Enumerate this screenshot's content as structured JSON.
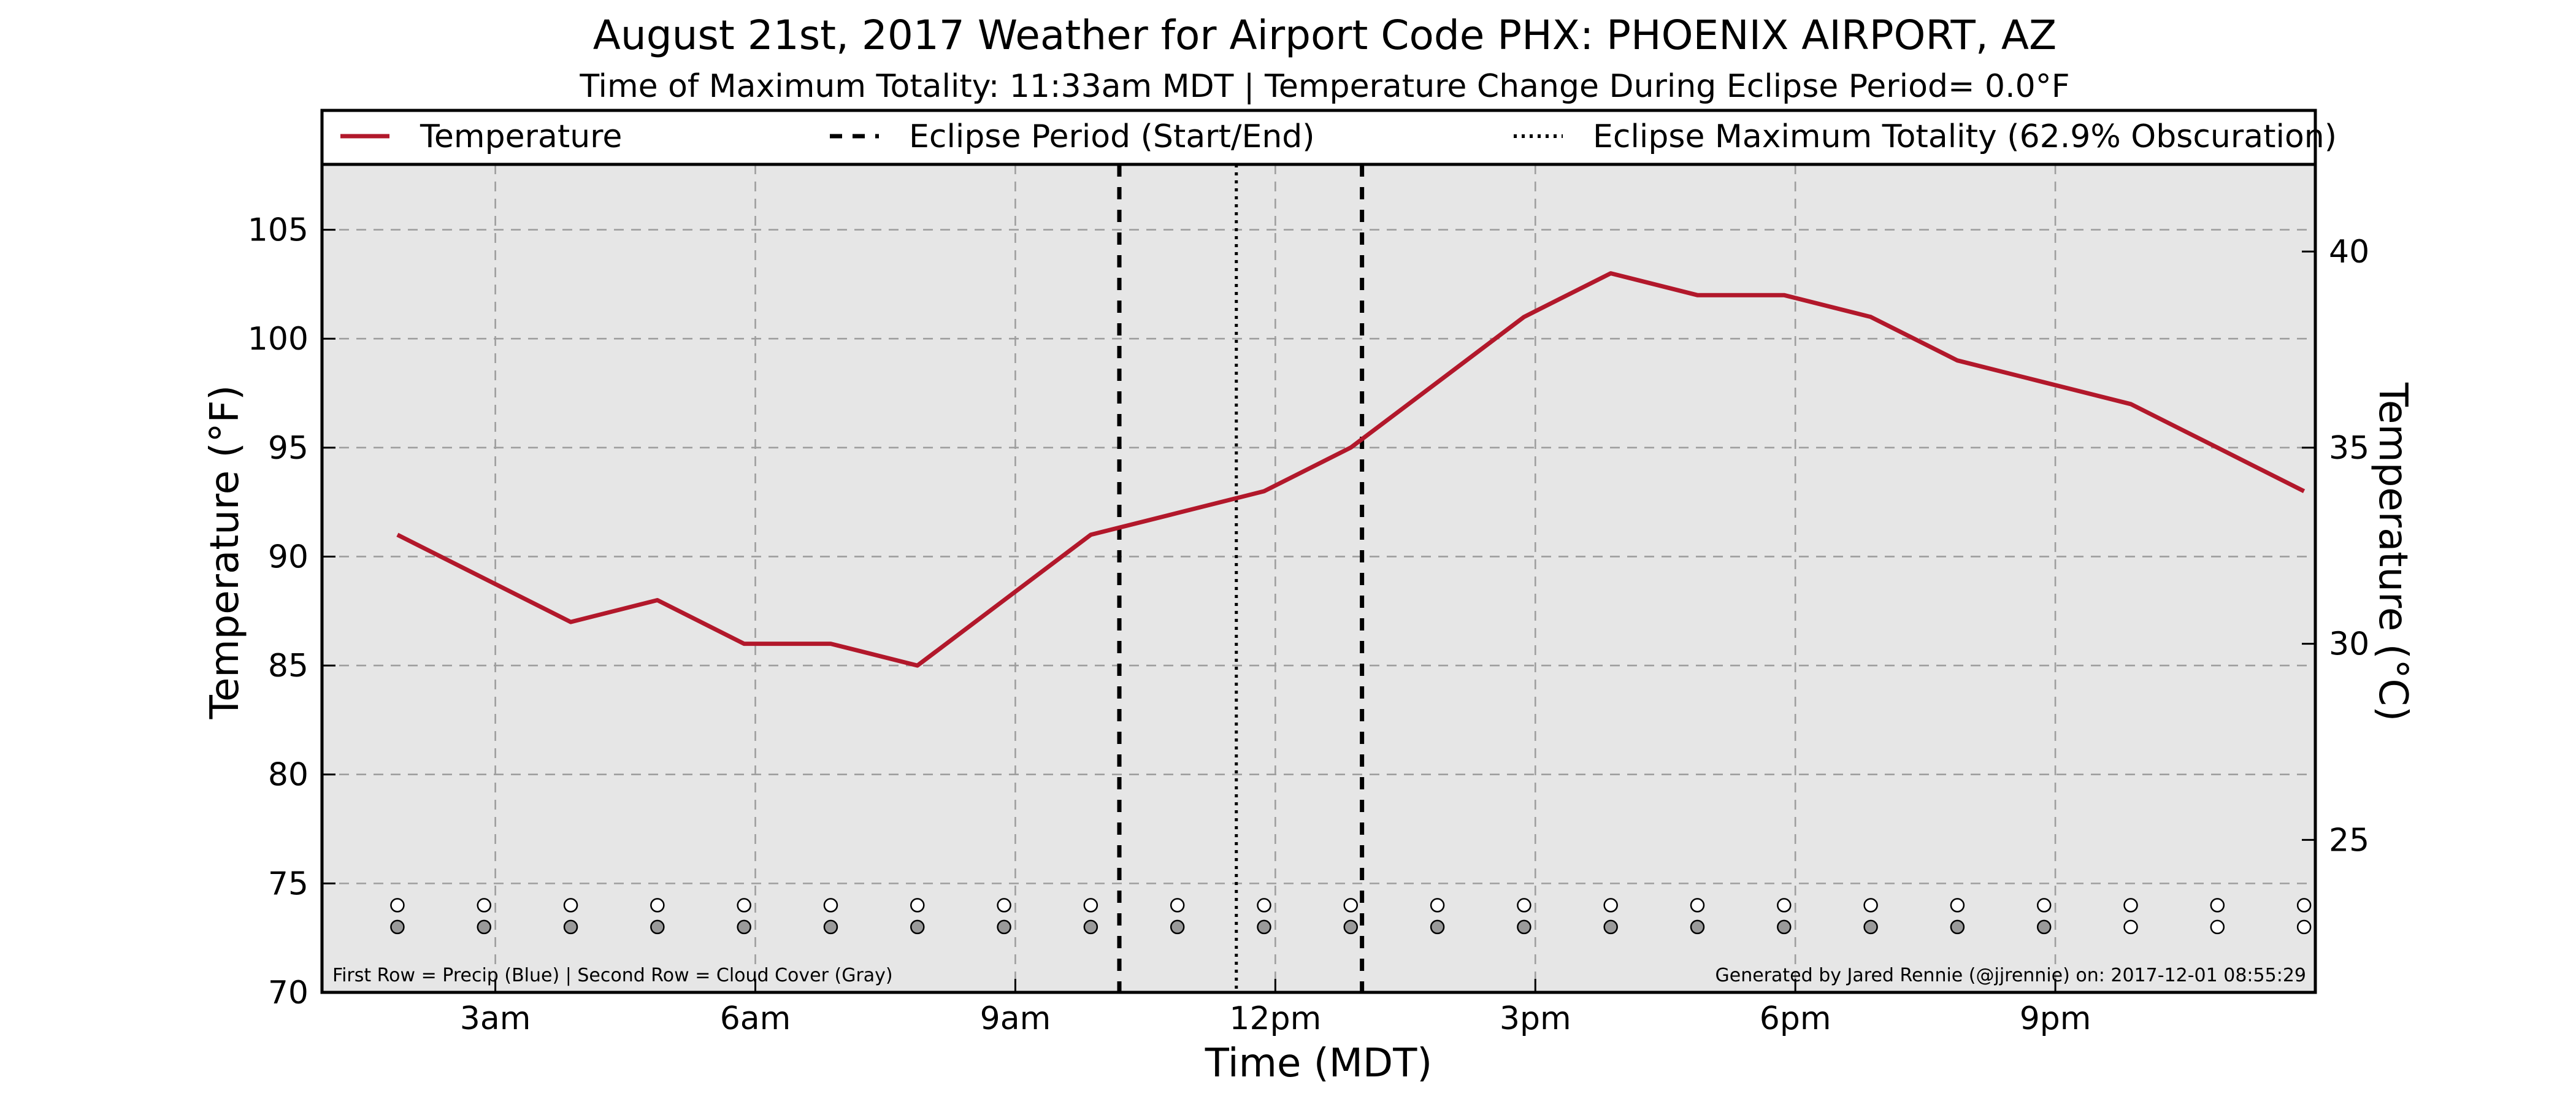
{
  "chart_data": {
    "type": "line",
    "title": "August 21st, 2017 Weather for Airport Code PHX: PHOENIX AIRPORT, AZ",
    "subtitle": "Time of Maximum Totality: 11:33am MDT | Temperature Change During Eclipse Period= 0.0°F",
    "xlabel": "Time (MDT)",
    "ylabel": "Temperature (°F)",
    "ylabel_right": "Temperature (°C)",
    "xlim": [
      1.0,
      24.0
    ],
    "ylim": [
      70,
      108
    ],
    "x_ticks": [
      {
        "x": 3,
        "label": "3am"
      },
      {
        "x": 6,
        "label": "6am"
      },
      {
        "x": 9,
        "label": "9am"
      },
      {
        "x": 12,
        "label": "12pm"
      },
      {
        "x": 15,
        "label": "3pm"
      },
      {
        "x": 18,
        "label": "6pm"
      },
      {
        "x": 21,
        "label": "9pm"
      }
    ],
    "y_ticks": [
      70,
      75,
      80,
      85,
      90,
      95,
      100,
      105
    ],
    "y_right_ticks": [
      25,
      30,
      35,
      40
    ],
    "grid": true,
    "background_color": "#e6e6e6",
    "legend": {
      "position": "top",
      "entries": [
        {
          "label": "Temperature",
          "style": "solid",
          "color": "#b2182b"
        },
        {
          "label": "Eclipse Period (Start/End)",
          "style": "dashed",
          "color": "#000000"
        },
        {
          "label": "Eclipse Maximum Totality (62.9% Obscuration)",
          "style": "dotted",
          "color": "#000000"
        }
      ]
    },
    "series": [
      {
        "name": "Temperature",
        "color": "#b2182b",
        "x": [
          1.87,
          2.87,
          3.87,
          4.87,
          5.87,
          6.87,
          7.87,
          8.87,
          9.87,
          10.87,
          11.87,
          12.87,
          13.87,
          14.87,
          15.87,
          16.87,
          17.87,
          18.87,
          19.87,
          20.87,
          21.87,
          22.87,
          23.87
        ],
        "y": [
          91,
          89,
          87,
          88,
          86,
          86,
          85,
          88,
          91,
          92,
          93,
          95,
          98,
          101,
          103,
          102,
          102,
          101,
          99,
          98,
          97,
          95,
          93
        ]
      }
    ],
    "eclipse": {
      "start_x": 10.2,
      "end_x": 13.0,
      "max_x": 11.55
    },
    "indicators": {
      "x": [
        1.87,
        2.87,
        3.87,
        4.87,
        5.87,
        6.87,
        7.87,
        8.87,
        9.87,
        10.87,
        11.87,
        12.87,
        13.87,
        14.87,
        15.87,
        16.87,
        17.87,
        18.87,
        19.87,
        20.87,
        21.87,
        22.87,
        23.87
      ],
      "precip_y": 74,
      "cloud_y": 73,
      "precip_color": "#ffffff",
      "cloud_colors": [
        "#9a9a9a",
        "#9a9a9a",
        "#9a9a9a",
        "#9a9a9a",
        "#9a9a9a",
        "#9a9a9a",
        "#9a9a9a",
        "#9a9a9a",
        "#9a9a9a",
        "#9a9a9a",
        "#9a9a9a",
        "#9a9a9a",
        "#9a9a9a",
        "#9a9a9a",
        "#9a9a9a",
        "#9a9a9a",
        "#9a9a9a",
        "#9a9a9a",
        "#9a9a9a",
        "#9a9a9a",
        "#ffffff",
        "#ffffff",
        "#ffffff"
      ]
    },
    "annotations": {
      "left_note": "First Row = Precip (Blue) | Second Row = Cloud Cover (Gray)",
      "right_note": "Generated by Jared Rennie (@jjrennie) on: 2017-12-01 08:55:29"
    }
  }
}
